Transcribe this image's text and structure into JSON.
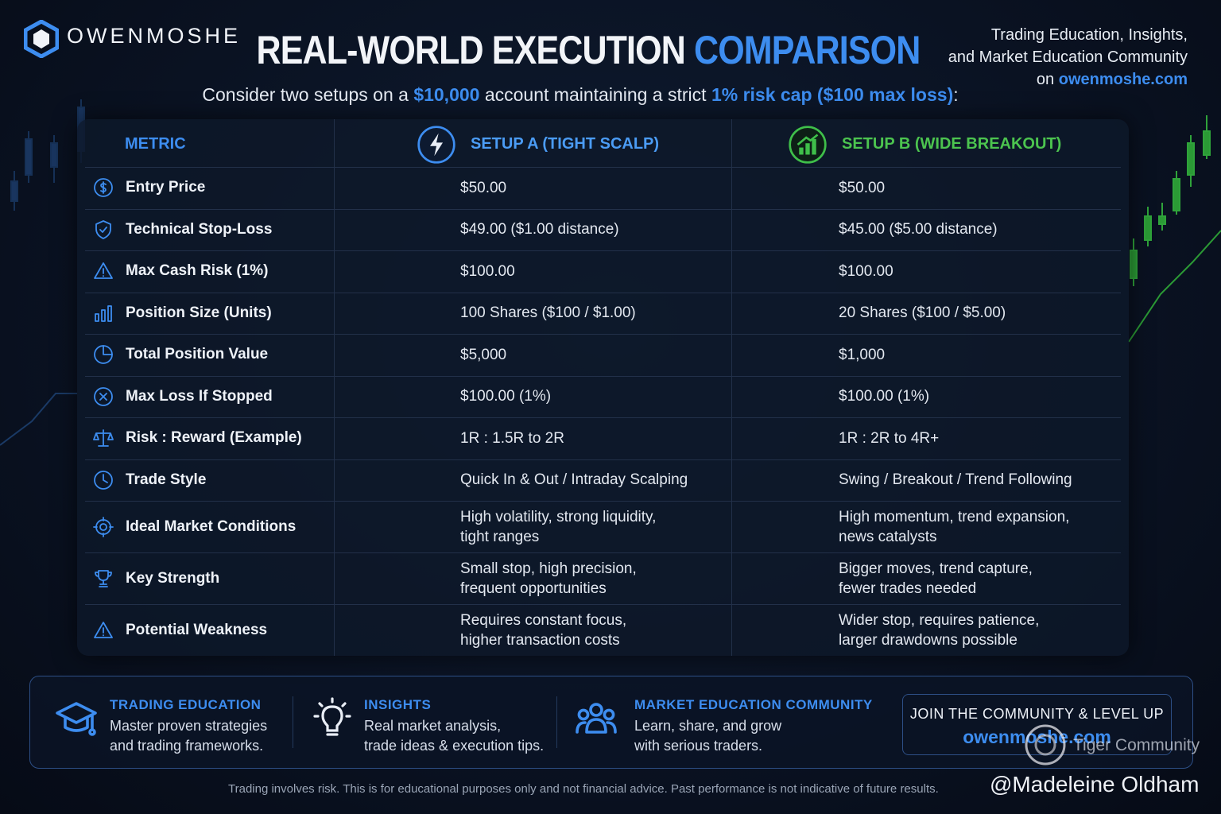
{
  "header": {
    "brand": "OWENMOSHE",
    "title_main": "REAL-WORLD EXECUTION ",
    "title_accent": "COMPARISON",
    "tagline_lines": [
      "Trading Education, Insights,",
      "and Market Education Community"
    ],
    "tagline_prefix": "on ",
    "tagline_link": "owenmoshe.com",
    "subtitle": [
      "Consider two setups on a ",
      "$10,000",
      " account maintaining a strict ",
      "1% risk cap ($100 max loss)",
      ":"
    ]
  },
  "table": {
    "headers": [
      "METRIC",
      "SETUP A (TIGHT SCALP)",
      "SETUP B (WIDE BREAKOUT)"
    ],
    "rows": [
      {
        "metric": "Entry Price",
        "a": [
          "$50.00"
        ],
        "b": [
          "$50.00"
        ]
      },
      {
        "metric": "Technical Stop-Loss",
        "a": [
          "$49.00 ($1.00 distance)"
        ],
        "b": [
          "$45.00 ($5.00 distance)"
        ]
      },
      {
        "metric": "Max Cash Risk (1%)",
        "a": [
          "$100.00"
        ],
        "b": [
          "$100.00"
        ]
      },
      {
        "metric": "Position Size (Units)",
        "a": [
          "100 Shares ($100 / $1.00)"
        ],
        "b": [
          "20 Shares ($100 / $5.00)"
        ]
      },
      {
        "metric": "Total Position Value",
        "a": [
          "$5,000"
        ],
        "b": [
          "$1,000"
        ]
      },
      {
        "metric": "Max Loss If Stopped",
        "a": [
          "$100.00 (1%)"
        ],
        "b": [
          "$100.00 (1%)"
        ]
      },
      {
        "metric": "Risk : Reward (Example)",
        "a": [
          "1R : 1.5R to 2R"
        ],
        "b": [
          "1R : 2R to 4R+"
        ]
      },
      {
        "metric": "Trade Style",
        "a": [
          "Quick In & Out / Intraday Scalping"
        ],
        "b": [
          "Swing / Breakout / Trend Following"
        ]
      },
      {
        "metric": "Ideal Market Conditions",
        "a": [
          "High volatility, strong liquidity,",
          "tight ranges"
        ],
        "b": [
          "High momentum, trend expansion,",
          "news catalysts"
        ]
      },
      {
        "metric": "Key Strength",
        "a": [
          "Small stop, high precision,",
          "frequent opportunities"
        ],
        "b": [
          "Bigger moves, trend capture,",
          "fewer trades needed"
        ]
      },
      {
        "metric": "Potential Weakness",
        "a": [
          "Requires constant focus,",
          "higher transaction costs"
        ],
        "b": [
          "Wider stop, requires patience,",
          "larger drawdowns possible"
        ]
      }
    ]
  },
  "footer": {
    "features": [
      {
        "title": "TRADING EDUCATION",
        "lines": [
          "Master proven strategies",
          "and trading frameworks."
        ]
      },
      {
        "title": "INSIGHTS",
        "lines": [
          "Real market analysis,",
          "trade ideas & execution tips."
        ]
      },
      {
        "title": "MARKET EDUCATION COMMUNITY",
        "lines": [
          "Learn, share, and grow",
          "with serious traders."
        ]
      }
    ],
    "cta_text": "JOIN THE COMMUNITY & LEVEL UP",
    "cta_link": "owenmoshe.com",
    "disclaimer": "Trading involves risk. This is for educational purposes only and not financial advice. Past performance is not indicative of future results.",
    "watermark_site": "Tiger Community",
    "watermark_user": "@Madeleine Oldham"
  }
}
